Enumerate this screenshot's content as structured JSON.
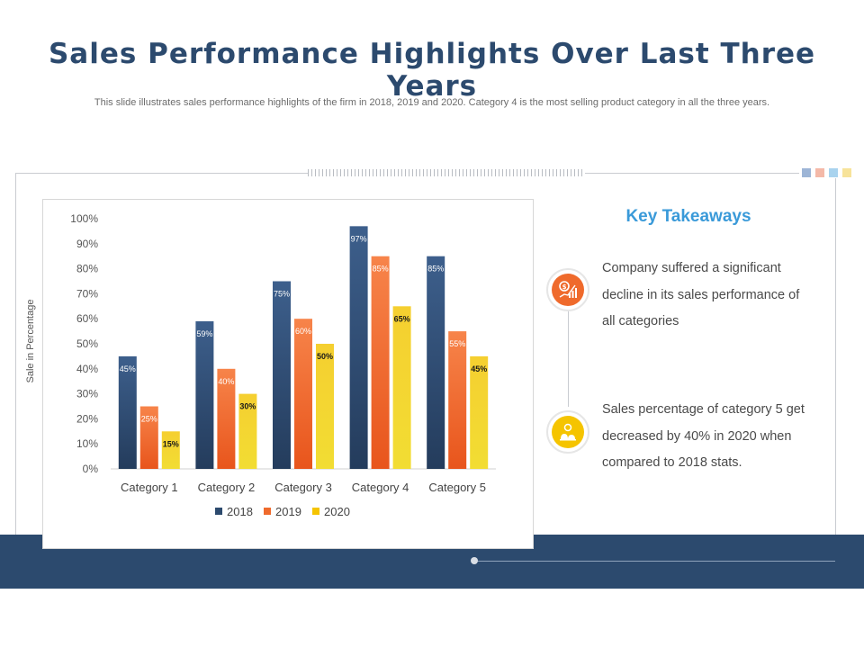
{
  "header": {
    "title": "Sales Performance Highlights Over Last Three Years",
    "subtitle": "This slide illustrates sales performance highlights of the firm in 2018, 2019 and 2020. Category 4 is the most selling product category in all the three years."
  },
  "theme": {
    "navy": "#2c4a6e",
    "orange": "#ef6a2c",
    "yellow": "#f5c400",
    "accent_blue": "#3a9ad9",
    "square_colors": [
      "#9db5d6",
      "#f4b9a8",
      "#a9d3ee",
      "#f7e39a"
    ]
  },
  "chart_data": {
    "type": "bar",
    "categories": [
      "Category 1",
      "Category 2",
      "Category 3",
      "Category 4",
      "Category 5"
    ],
    "series": [
      {
        "name": "2018",
        "values": [
          45,
          59,
          75,
          97,
          85
        ],
        "labels": [
          "45%",
          "59%",
          "75%",
          "97%",
          "85%"
        ],
        "color": "#2c4a6e"
      },
      {
        "name": "2019",
        "values": [
          25,
          40,
          60,
          85,
          55
        ],
        "labels": [
          "25%",
          "40%",
          "60%",
          "85%",
          "55%"
        ],
        "color": "#ef6a2c"
      },
      {
        "name": "2020",
        "values": [
          15,
          30,
          50,
          65,
          45
        ],
        "labels": [
          "15%",
          "30%",
          "50%",
          "65%",
          "45%"
        ],
        "color": "#f5c400"
      }
    ],
    "ylabel": "Sale in Percentage",
    "ylim": [
      0,
      100
    ],
    "yticks": [
      "0%",
      "10%",
      "20%",
      "30%",
      "40%",
      "50%",
      "60%",
      "70%",
      "80%",
      "90%",
      "100%"
    ],
    "legend_position": "bottom",
    "grid": false
  },
  "takeaways": {
    "title": "Key Takeaways",
    "items": [
      {
        "icon": "money-growth-icon",
        "text": "Company suffered a significant decline in its sales performance of all categories",
        "color": "#ef6a2c"
      },
      {
        "icon": "money-bags-icon",
        "text": "Sales percentage of category 5 get decreased by 40% in 2020 when compared to 2018 stats.",
        "color": "#f5c400"
      }
    ]
  }
}
